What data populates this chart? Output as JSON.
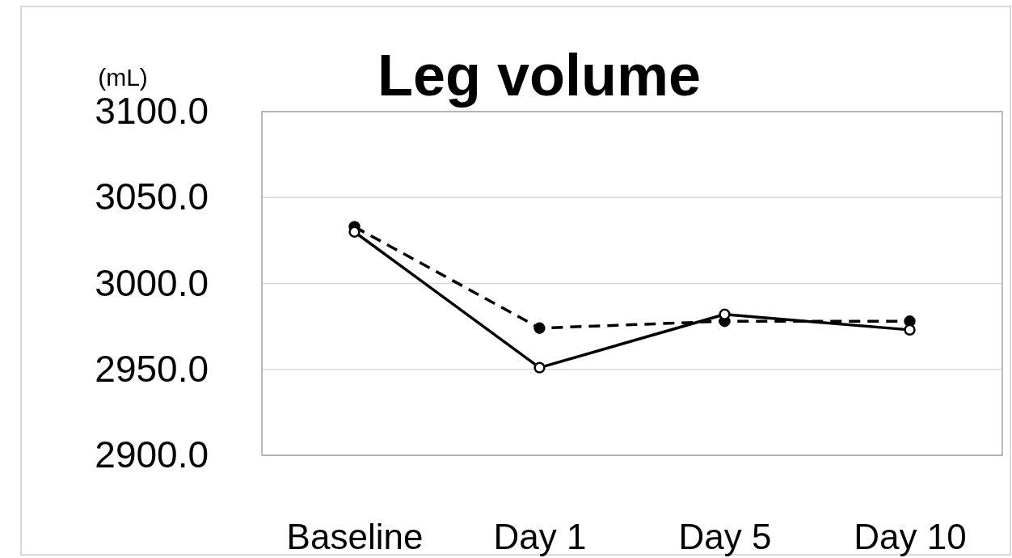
{
  "chart_data": {
    "type": "line",
    "title": "Leg volume",
    "ylabel": "(mL)",
    "categories": [
      "Baseline",
      "Day 1",
      "Day 5",
      "Day 10"
    ],
    "series": [
      {
        "color": "#000000",
        "values": [
          3033,
          2974,
          2978,
          2978
        ],
        "line_style": "dashed"
      },
      {
        "color": "#000000",
        "values": [
          3030,
          2951,
          2982,
          2973
        ],
        "line_style": "solid"
      }
    ],
    "ylim": [
      2900,
      3100
    ],
    "yticks": [
      {
        "value": 2900,
        "label": "2900.0"
      },
      {
        "value": 2950,
        "label": "2950.0"
      },
      {
        "value": 3000,
        "label": "3000.0"
      },
      {
        "value": 3050,
        "label": "3050.0"
      },
      {
        "value": 3100,
        "label": "3100.0"
      }
    ],
    "grid": "y",
    "marker": "circle"
  }
}
